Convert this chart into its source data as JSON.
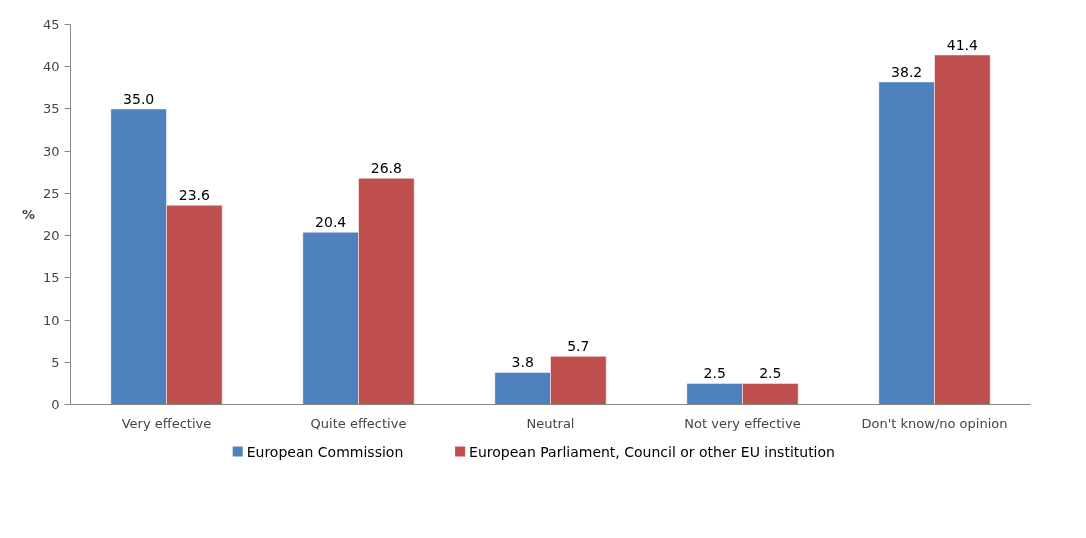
{
  "chart_data": {
    "type": "bar",
    "ylabel": "%",
    "categories": [
      "Very effective",
      "Quite effective",
      "Neutral",
      "Not very effective",
      "Don't know/no opinion"
    ],
    "series": [
      {
        "name": "European Commission",
        "color": "#4f81bd",
        "values": [
          35.0,
          20.4,
          3.8,
          2.5,
          38.2
        ],
        "value_labels": [
          "35.0",
          "20.4",
          "3.8",
          "2.5",
          "38.2"
        ]
      },
      {
        "name": "European Parliament, Council or other EU institution",
        "color": "#c0504d",
        "values": [
          23.6,
          26.8,
          5.7,
          2.5,
          41.4
        ],
        "value_labels": [
          "23.6",
          "26.8",
          "5.7",
          "2.5",
          "41.4"
        ]
      }
    ],
    "ylim": [
      0,
      45
    ],
    "yticks": [
      0,
      5,
      10,
      15,
      20,
      25,
      30,
      35,
      40,
      45
    ],
    "grid": false,
    "legend": "bottom"
  }
}
